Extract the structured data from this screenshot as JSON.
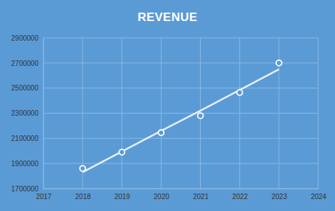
{
  "chart_data": {
    "type": "scatter",
    "title": "REVENUE",
    "x": [
      2018,
      2019,
      2020,
      2021,
      2022,
      2023
    ],
    "series": [
      {
        "type": "scatter",
        "marker": "circle",
        "color": "#ffffff",
        "values": [
          1860000,
          1990000,
          2145000,
          2280000,
          2465000,
          2700000
        ]
      },
      {
        "type": "line",
        "line_style": "solid",
        "color": "#ffffff",
        "values": [
          1830000,
          1995000,
          2160000,
          2320000,
          2485000,
          2650000
        ]
      }
    ],
    "xlim": [
      2017,
      2024
    ],
    "xticks": [
      2017,
      2018,
      2019,
      2020,
      2021,
      2022,
      2023,
      2024
    ],
    "ylim": [
      1700000,
      2900000
    ],
    "yticks": [
      1700000,
      1900000,
      2100000,
      2300000,
      2500000,
      2700000,
      2900000
    ],
    "grid": true
  }
}
